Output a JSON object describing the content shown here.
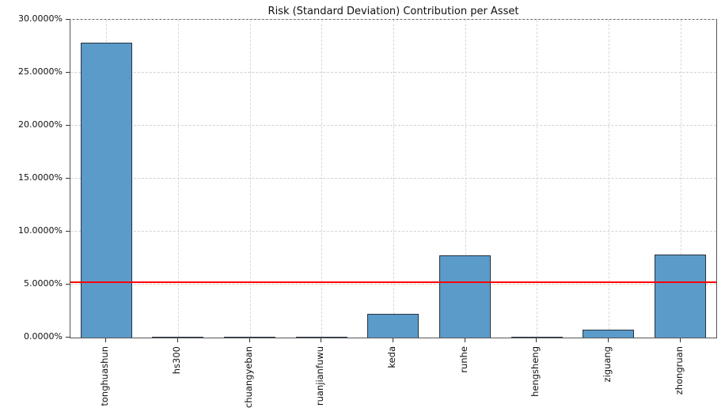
{
  "chart_data": {
    "type": "bar",
    "title": "Risk (Standard Deviation) Contribution per Asset",
    "categories": [
      "tonghuashun",
      "hs300",
      "chuangyeban",
      "ruanjianfuwu",
      "keda",
      "runhe",
      "hengsheng",
      "ziguang",
      "zhongruan"
    ],
    "values": [
      27.8,
      0.01,
      0.04,
      0.02,
      2.26,
      7.76,
      0.005,
      0.75,
      7.85
    ],
    "ylim": [
      0,
      30
    ],
    "yticks": [
      0,
      5,
      10,
      15,
      20,
      25,
      30
    ],
    "ytick_labels": [
      "0.0000%",
      "5.0000%",
      "10.0000%",
      "15.0000%",
      "20.0000%",
      "25.0000%",
      "30.0000%"
    ],
    "xlabel": "",
    "ylabel": "",
    "grid": true,
    "legend": "none",
    "bar_color": "#5b9bc9",
    "bar_edge_color": "#23323f",
    "avg_line_value": 5.17,
    "avg_line_color": "#ff0000"
  }
}
